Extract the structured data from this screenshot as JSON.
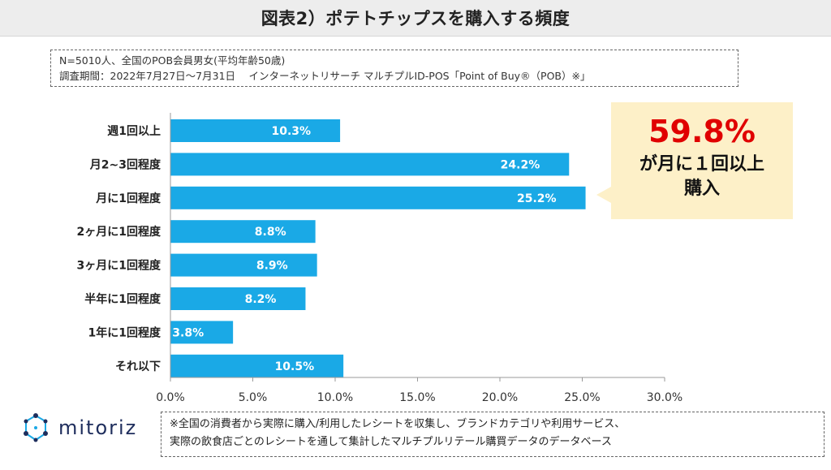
{
  "title": "図表2）ポテトチップスを購入する頻度",
  "info": {
    "line1": "N=5010人、全国のPOB会員男女(平均年齢50歳)",
    "line2": "調査期間：2022年7月27日～7月31日　 インターネットリサーチ マルチプルID-POS「Point of Buy®（POB）※」"
  },
  "callout": {
    "percent": "59.8%",
    "line1": "が月に１回以上",
    "line2": "購入"
  },
  "footnote": {
    "line1": "※全国の消費者から実際に購入/利用したレシートを収集し、ブランドカテゴリや利用サービス、",
    "line2": "実際の飲食店ごとのレシートを通して集計したマルチプルリテール購買データのデータベース"
  },
  "logo": {
    "name": "mitoriz",
    "icon": "mitoriz-logo-icon"
  },
  "colors": {
    "bar": "#1aa9e6",
    "accent": "#e00000",
    "callout_bg": "#fdf0c8"
  },
  "chart_data": {
    "type": "bar",
    "orientation": "horizontal",
    "categories": [
      "週1回以上",
      "月2~3回程度",
      "月に1回程度",
      "2ヶ月に1回程度",
      "3ヶ月に1回程度",
      "半年に1回程度",
      "1年に1回程度",
      "それ以下"
    ],
    "values": [
      10.3,
      24.2,
      25.2,
      8.8,
      8.9,
      8.2,
      3.8,
      10.5
    ],
    "value_labels": [
      "10.3%",
      "24.2%",
      "25.2%",
      "8.8%",
      "8.9%",
      "8.2%",
      "3.8%",
      "10.5%"
    ],
    "xlim": [
      0,
      30
    ],
    "xticks": [
      "0.0%",
      "5.0%",
      "10.0%",
      "15.0%",
      "20.0%",
      "25.0%",
      "30.0%"
    ],
    "grid": false,
    "legend": false
  }
}
